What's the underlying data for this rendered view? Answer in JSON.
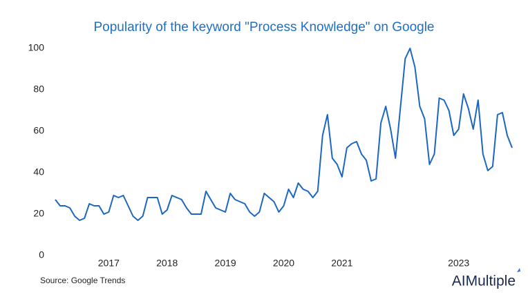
{
  "chart_data": {
    "type": "line",
    "title": "Popularity of the keyword \"Process Knowledge\" on Google",
    "source": "Source: Google Trends",
    "brand": "AIMultiple",
    "categories": [
      null,
      null,
      null,
      null,
      null,
      null,
      null,
      null,
      null,
      null,
      null,
      "2017",
      null,
      null,
      null,
      null,
      null,
      null,
      null,
      null,
      null,
      null,
      null,
      "2018",
      null,
      null,
      null,
      null,
      null,
      null,
      null,
      null,
      null,
      null,
      null,
      "2019",
      null,
      null,
      null,
      null,
      null,
      null,
      null,
      null,
      null,
      null,
      null,
      "2020",
      null,
      null,
      null,
      null,
      null,
      null,
      null,
      null,
      null,
      null,
      null,
      "2021",
      null,
      null,
      null,
      null,
      null,
      null,
      null,
      null,
      null,
      null,
      null,
      null,
      null,
      null,
      null,
      null,
      null,
      null,
      null,
      null,
      null,
      null,
      null,
      "2023",
      null,
      null,
      null,
      null,
      null,
      null,
      null,
      null,
      null,
      null,
      null
    ],
    "series": [
      {
        "name": "Process Knowledge",
        "color": "#1a66c2",
        "values": [
          27,
          24,
          24,
          23,
          19,
          17,
          18,
          25,
          24,
          24,
          20,
          21,
          29,
          28,
          29,
          24,
          19,
          17,
          19,
          28,
          28,
          28,
          20,
          22,
          29,
          28,
          27,
          23,
          20,
          20,
          20,
          31,
          27,
          23,
          22,
          21,
          30,
          27,
          26,
          25,
          21,
          19,
          21,
          30,
          28,
          26,
          21,
          24,
          32,
          28,
          35,
          32,
          31,
          28,
          31,
          58,
          68,
          47,
          44,
          38,
          52,
          54,
          55,
          49,
          46,
          36,
          37,
          64,
          72,
          61,
          47,
          71,
          95,
          100,
          91,
          72,
          66,
          44,
          49,
          76,
          75,
          70,
          58,
          61,
          78,
          71,
          61,
          75,
          49,
          41,
          43,
          68,
          69,
          58,
          52
        ]
      }
    ],
    "ylim": [
      0,
      100
    ],
    "yticks": [
      0,
      20,
      40,
      60,
      80,
      100
    ],
    "grid": false,
    "legend": false
  }
}
